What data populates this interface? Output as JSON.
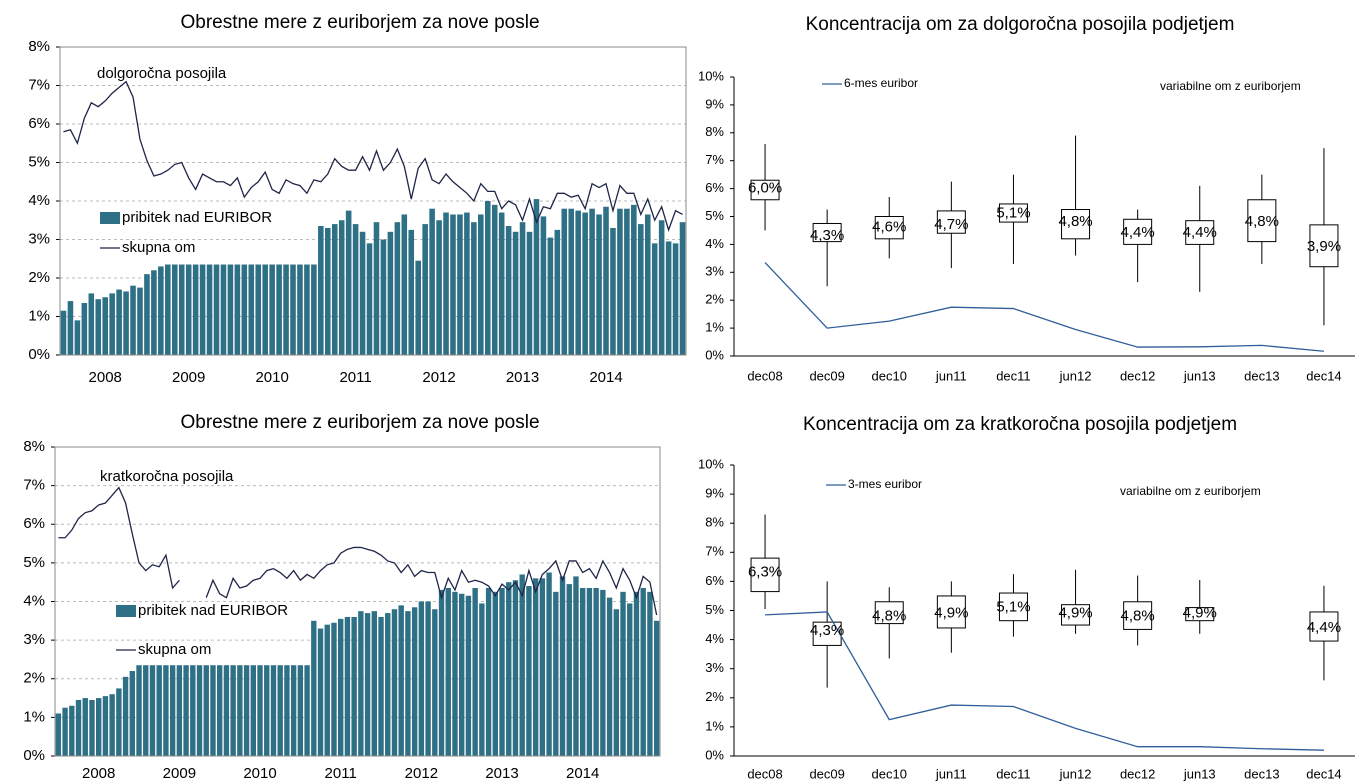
{
  "chart_data": [
    {
      "type": "bar_line",
      "title": "Obrestne mere z euriborjem za nove posle",
      "annotation": "dolgoročna posojila",
      "categories": [
        null,
        null,
        null,
        null,
        null,
        null,
        "2008",
        null,
        null,
        null,
        null,
        null,
        null,
        null,
        null,
        null,
        null,
        null,
        "2009",
        null,
        null,
        null,
        null,
        null,
        null,
        null,
        null,
        null,
        null,
        null,
        "2010",
        null,
        null,
        null,
        null,
        null,
        null,
        null,
        null,
        null,
        null,
        null,
        "2011",
        null,
        null,
        null,
        null,
        null,
        null,
        null,
        null,
        null,
        null,
        null,
        "2012",
        null,
        null,
        null,
        null,
        null,
        null,
        null,
        null,
        null,
        null,
        null,
        "2013",
        null,
        null,
        null,
        null,
        null,
        null,
        null,
        null,
        null,
        null,
        null,
        "2014",
        null,
        null,
        null,
        null,
        null,
        null,
        null,
        null,
        null,
        null,
        null
      ],
      "series": [
        {
          "name": "pribitek nad EURIBOR",
          "type": "bar",
          "color": "#2e7085",
          "values": [
            1.15,
            1.4,
            0.9,
            1.35,
            1.6,
            1.45,
            1.5,
            1.6,
            1.7,
            1.65,
            1.8,
            1.75,
            2.1,
            2.2,
            2.3,
            2.35,
            2.35,
            2.35,
            2.35,
            2.35,
            2.35,
            2.35,
            2.35,
            2.35,
            2.35,
            2.35,
            2.35,
            2.35,
            2.35,
            2.35,
            2.35,
            2.35,
            2.35,
            2.35,
            2.35,
            2.35,
            2.35,
            3.35,
            3.3,
            3.4,
            3.5,
            3.75,
            3.4,
            3.2,
            2.9,
            3.45,
            3,
            3.2,
            3.45,
            3.65,
            3.25,
            2.45,
            3.4,
            3.8,
            3.5,
            3.7,
            3.65,
            3.65,
            3.7,
            3.45,
            3.65,
            4,
            3.9,
            3.7,
            3.35,
            3.2,
            3.45,
            3.2,
            4.05,
            3.6,
            3.05,
            3.25,
            3.8,
            3.8,
            3.75,
            3.7,
            3.8,
            3.65,
            3.85,
            3.3,
            3.8,
            3.8,
            3.9,
            3.4,
            3.65,
            2.9,
            3.5,
            2.95,
            2.9,
            3.45
          ]
        },
        {
          "name": "skupna om",
          "type": "line",
          "color": "#1f2548",
          "values": [
            5.8,
            5.85,
            5.5,
            6.15,
            6.55,
            6.45,
            6.6,
            6.8,
            6.95,
            7.1,
            6.7,
            5.6,
            5.05,
            4.65,
            4.7,
            4.8,
            4.95,
            5,
            4.6,
            4.3,
            4.7,
            4.6,
            4.5,
            4.5,
            4.4,
            4.6,
            4.1,
            4.35,
            4.5,
            4.75,
            4.3,
            4.2,
            4.55,
            4.45,
            4.4,
            4.2,
            4.55,
            4.5,
            4.7,
            5.1,
            4.9,
            4.8,
            4.8,
            5.15,
            4.8,
            5.3,
            4.8,
            5,
            5.35,
            4.9,
            4.05,
            4.85,
            5.1,
            4.55,
            4.45,
            4.7,
            4.5,
            4.35,
            4.2,
            4,
            4.45,
            4.25,
            4.25,
            3.8,
            4,
            3.9,
            3.5,
            4.05,
            3.45,
            3.85,
            3.8,
            4.2,
            4.2,
            4.1,
            4.15,
            3.8,
            4.45,
            4.35,
            4.45,
            3.75,
            4.4,
            4.2,
            4.2,
            3.65,
            4.05,
            3.5,
            3.85,
            3.25,
            3.75,
            3.65
          ]
        }
      ],
      "ylim": [
        0,
        8
      ],
      "yticks": [
        {
          "value": 0,
          "label": "0%"
        },
        {
          "value": 1,
          "label": "1%"
        },
        {
          "value": 2,
          "label": "2%"
        },
        {
          "value": 3,
          "label": "3%"
        },
        {
          "value": 4,
          "label": "4%"
        },
        {
          "value": 5,
          "label": "5%"
        },
        {
          "value": 6,
          "label": "6%"
        },
        {
          "value": 7,
          "label": "7%"
        },
        {
          "value": 8,
          "label": "8%"
        }
      ],
      "grid": true
    },
    {
      "type": "box",
      "title": "Koncentracija om za dolgoročna posojila podjetjem",
      "annotation": "variabilne om z euriborjem",
      "categories": [
        "dec08",
        "dec09",
        "dec10",
        "jun11",
        "dec11",
        "jun12",
        "dec12",
        "jun13",
        "dec13",
        "dec14"
      ],
      "low": [
        4.5,
        2.5,
        3.5,
        3.15,
        3.3,
        3.6,
        2.65,
        2.3,
        3.3,
        1.1
      ],
      "q1": [
        5.6,
        4.1,
        4.2,
        4.4,
        4.8,
        4.2,
        4,
        4,
        4.1,
        3.2
      ],
      "q3": [
        6.3,
        4.75,
        5,
        5.2,
        5.45,
        5.25,
        4.9,
        4.85,
        5.6,
        4.7
      ],
      "high": [
        7.6,
        5.25,
        5.7,
        6.25,
        6.5,
        7.9,
        5.25,
        6.1,
        6.5,
        7.45
      ],
      "values": [
        6,
        4.3,
        4.6,
        4.7,
        5.1,
        4.8,
        4.4,
        4.4,
        4.8,
        3.9
      ],
      "value_labels": [
        "6,0%",
        "4,3%",
        "4,6%",
        "4,7%",
        "5,1%",
        "4,8%",
        "4,4%",
        "4,4%",
        "4,8%",
        "3,9%"
      ],
      "line": {
        "name": "6-mes euribor",
        "color": "#2f5f9a",
        "values": [
          3.35,
          1,
          1.25,
          1.75,
          1.7,
          0.95,
          0.32,
          0.33,
          0.38,
          0.17
        ]
      },
      "ylim": [
        0,
        10
      ],
      "yticks": [
        {
          "value": 0,
          "label": "0%"
        },
        {
          "value": 1,
          "label": "1%"
        },
        {
          "value": 2,
          "label": "2%"
        },
        {
          "value": 3,
          "label": "3%"
        },
        {
          "value": 4,
          "label": "4%"
        },
        {
          "value": 5,
          "label": "5%"
        },
        {
          "value": 6,
          "label": "6%"
        },
        {
          "value": 7,
          "label": "7%"
        },
        {
          "value": 8,
          "label": "8%"
        },
        {
          "value": 9,
          "label": "9%"
        },
        {
          "value": 10,
          "label": "10%"
        }
      ],
      "grid": false
    },
    {
      "type": "bar_line",
      "title": "Obrestne mere z euriborjem za nove posle",
      "annotation": "kratkoročna posojila",
      "categories": [
        null,
        null,
        null,
        null,
        null,
        null,
        "2008",
        null,
        null,
        null,
        null,
        null,
        null,
        null,
        null,
        null,
        null,
        null,
        "2009",
        null,
        null,
        null,
        null,
        null,
        null,
        null,
        null,
        null,
        null,
        null,
        "2010",
        null,
        null,
        null,
        null,
        null,
        null,
        null,
        null,
        null,
        null,
        null,
        "2011",
        null,
        null,
        null,
        null,
        null,
        null,
        null,
        null,
        null,
        null,
        null,
        "2012",
        null,
        null,
        null,
        null,
        null,
        null,
        null,
        null,
        null,
        null,
        null,
        "2013",
        null,
        null,
        null,
        null,
        null,
        null,
        null,
        null,
        null,
        null,
        null,
        "2014",
        null,
        null,
        null,
        null,
        null,
        null,
        null,
        null,
        null,
        null,
        null
      ],
      "series": [
        {
          "name": "pribitek nad EURIBOR",
          "type": "bar",
          "color": "#2e7085",
          "values": [
            1.1,
            1.25,
            1.3,
            1.45,
            1.5,
            1.45,
            1.5,
            1.55,
            1.6,
            1.75,
            2.05,
            2.2,
            2.35,
            2.35,
            2.35,
            2.35,
            2.35,
            2.35,
            2.35,
            2.35,
            2.35,
            2.35,
            2.35,
            2.35,
            2.35,
            2.35,
            2.35,
            2.35,
            2.35,
            2.35,
            2.35,
            2.35,
            2.35,
            2.35,
            2.35,
            2.35,
            2.35,
            2.35,
            3.5,
            3.3,
            3.4,
            3.45,
            3.55,
            3.6,
            3.6,
            3.75,
            3.7,
            3.75,
            3.6,
            3.7,
            3.8,
            3.9,
            3.75,
            3.85,
            4,
            4,
            3.8,
            4.3,
            4.35,
            4.25,
            4.2,
            4.15,
            4.35,
            3.95,
            4.35,
            4.25,
            4.35,
            4.5,
            4.55,
            4.7,
            4.4,
            4.6,
            4.6,
            4.75,
            4.25,
            4.65,
            4.45,
            4.65,
            4.35,
            4.35,
            4.35,
            4.3,
            4.1,
            3.8,
            4.25,
            3.95,
            4.25,
            4.35,
            4.25,
            3.5
          ]
        },
        {
          "name": "skupna om",
          "type": "line",
          "color": "#1f2548",
          "values": [
            5.65,
            5.65,
            5.85,
            6.15,
            6.3,
            6.35,
            6.5,
            6.55,
            6.75,
            6.95,
            6.55,
            5.75,
            5,
            4.8,
            4.95,
            4.9,
            5.2,
            4.35,
            4.55,
            null,
            null,
            null,
            4.1,
            4.55,
            4.2,
            4.1,
            4.6,
            4.35,
            4.4,
            4.55,
            4.6,
            4.8,
            4.85,
            4.75,
            4.6,
            4.8,
            4.55,
            4.7,
            4.6,
            4.8,
            4.95,
            5,
            5.25,
            5.35,
            5.4,
            5.4,
            5.35,
            5.3,
            5.2,
            5.05,
            5,
            4.75,
            4.95,
            4.65,
            4.8,
            4.75,
            4.75,
            4.1,
            4.6,
            4.3,
            4.8,
            4.5,
            4.55,
            4.5,
            4.4,
            4.15,
            4.45,
            4.3,
            4.5,
            4.15,
            4.8,
            4.25,
            4.7,
            4.85,
            5.05,
            4.55,
            5.05,
            5.05,
            4.75,
            4.85,
            4.6,
            5.05,
            4.75,
            4.35,
            4.85,
            4.55,
            4.1,
            4.65,
            4.5,
            3.65
          ]
        }
      ],
      "ylim": [
        0,
        8
      ],
      "yticks": [
        {
          "value": 0,
          "label": "0%"
        },
        {
          "value": 1,
          "label": "1%"
        },
        {
          "value": 2,
          "label": "2%"
        },
        {
          "value": 3,
          "label": "3%"
        },
        {
          "value": 4,
          "label": "4%"
        },
        {
          "value": 5,
          "label": "5%"
        },
        {
          "value": 6,
          "label": "6%"
        },
        {
          "value": 7,
          "label": "7%"
        },
        {
          "value": 8,
          "label": "8%"
        }
      ],
      "grid": true
    },
    {
      "type": "box",
      "title": "Koncentracija om za kratkoročna posojila podjetjem",
      "annotation": "variabilne om z euriborjem",
      "categories": [
        "dec08",
        "dec09",
        "dec10",
        "jun11",
        "dec11",
        "jun12",
        "dec12",
        "jun13",
        "dec13",
        "dec14"
      ],
      "low": [
        5.05,
        2.35,
        3.35,
        3.55,
        4.1,
        4.2,
        3.8,
        4.2,
        null,
        2.6
      ],
      "q1": [
        5.65,
        3.8,
        4.55,
        4.4,
        4.65,
        4.5,
        4.35,
        4.65,
        null,
        3.95
      ],
      "q3": [
        6.8,
        4.6,
        5.3,
        5.5,
        5.6,
        5.2,
        5.3,
        5.1,
        null,
        4.95
      ],
      "high": [
        8.3,
        6,
        5.8,
        6,
        6.25,
        6.4,
        6.2,
        6.05,
        null,
        5.85
      ],
      "values": [
        6.3,
        4.3,
        4.8,
        4.9,
        5.1,
        4.9,
        4.8,
        4.9,
        null,
        4.4
      ],
      "value_labels": [
        "6,3%",
        "4,3%",
        "4,8%",
        "4,9%",
        "5,1%",
        "4,9%",
        "4,8%",
        "4,9%",
        null,
        "4,4%"
      ],
      "line": {
        "name": "3-mes euribor",
        "color": "#2f5f9a",
        "values": [
          4.85,
          4.95,
          1.25,
          1.75,
          1.7,
          0.95,
          0.32,
          0.32,
          0.25,
          0.2
        ]
      },
      "ylim": [
        0,
        10
      ],
      "yticks": [
        {
          "value": 0,
          "label": "0%"
        },
        {
          "value": 1,
          "label": "1%"
        },
        {
          "value": 2,
          "label": "2%"
        },
        {
          "value": 3,
          "label": "3%"
        },
        {
          "value": 4,
          "label": "4%"
        },
        {
          "value": 5,
          "label": "5%"
        },
        {
          "value": 6,
          "label": "6%"
        },
        {
          "value": 7,
          "label": "7%"
        },
        {
          "value": 8,
          "label": "8%"
        },
        {
          "value": 9,
          "label": "9%"
        },
        {
          "value": 10,
          "label": "10%"
        }
      ],
      "grid": false
    }
  ]
}
